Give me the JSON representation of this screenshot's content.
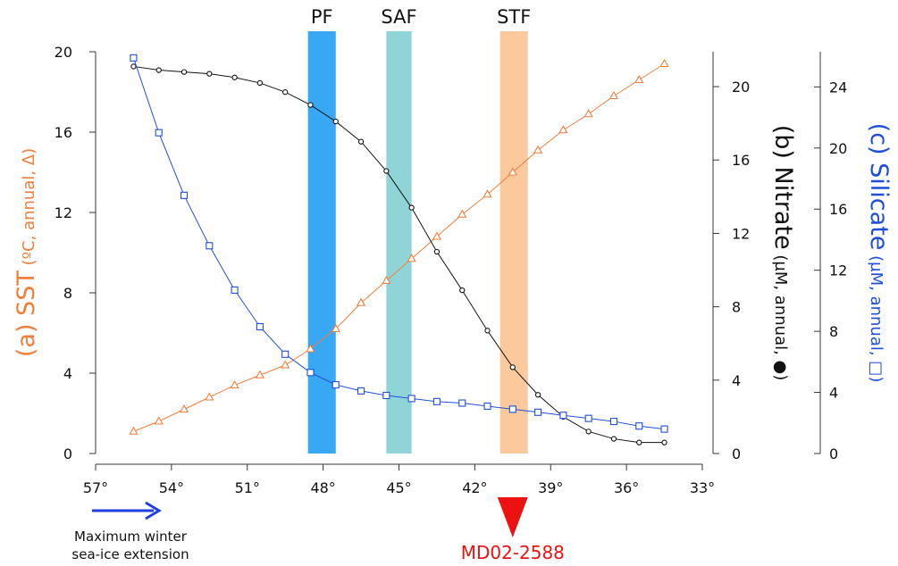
{
  "chart_data": {
    "type": "line",
    "x_label_unit": "°",
    "x_ticks": [
      57,
      54,
      51,
      48,
      45,
      42,
      39,
      36,
      33
    ],
    "xlim": [
      57,
      33
    ],
    "axes": {
      "sst": {
        "ticks": [
          0,
          4,
          8,
          12,
          16,
          20
        ],
        "ylim": [
          0,
          20
        ],
        "title_main": "(a) SST",
        "title_sub": " (ºC, annual, Δ)",
        "color": "#f07f3c"
      },
      "nitrate": {
        "ticks": [
          0,
          4,
          8,
          12,
          16,
          20
        ],
        "ylim": [
          0,
          21.9
        ],
        "title_main": "(b) Nitrate",
        "title_sub": " (µM, annual, ●)",
        "color": "#111111"
      },
      "silicate": {
        "ticks": [
          0,
          4,
          8,
          12,
          16,
          20,
          24
        ],
        "ylim": [
          0,
          26.3
        ],
        "title_main": "(c) Silicate",
        "title_sub": " (µM, annual, □)",
        "color": "#1f4fd6"
      }
    },
    "fronts": [
      {
        "label": "PF",
        "x_from": 48.6,
        "x_to": 47.5,
        "color": "#38a8f5"
      },
      {
        "label": "SAF",
        "x_from": 45.5,
        "x_to": 44.5,
        "color": "#8fd5d8"
      },
      {
        "label": "STF",
        "x_from": 41.0,
        "x_to": 39.9,
        "color": "#fbc99c"
      }
    ],
    "series": [
      {
        "axis": "sst",
        "marker": "triangle",
        "color": "#f07f3c",
        "x": [
          55.5,
          54.5,
          53.5,
          52.5,
          51.5,
          50.5,
          49.5,
          48.5,
          47.5,
          46.5,
          45.5,
          44.5,
          43.5,
          42.5,
          41.5,
          40.5,
          39.5,
          38.5,
          37.5,
          36.5,
          35.5,
          34.5
        ],
        "y": [
          1.1,
          1.6,
          2.2,
          2.8,
          3.4,
          3.9,
          4.4,
          5.2,
          6.2,
          7.5,
          8.6,
          9.7,
          10.8,
          11.9,
          12.9,
          14.0,
          15.1,
          16.1,
          16.9,
          17.8,
          18.6,
          19.4
        ]
      },
      {
        "axis": "nitrate",
        "marker": "circle",
        "color": "#111111",
        "x": [
          55.5,
          54.5,
          53.5,
          52.5,
          51.5,
          50.5,
          49.5,
          48.5,
          47.5,
          46.5,
          45.5,
          44.5,
          43.5,
          42.5,
          41.5,
          40.5,
          39.5,
          38.5,
          37.5,
          36.5,
          35.5,
          34.5
        ],
        "y": [
          21.1,
          20.9,
          20.8,
          20.7,
          20.5,
          20.2,
          19.7,
          19.0,
          18.1,
          17.0,
          15.4,
          13.4,
          11.0,
          8.9,
          6.7,
          4.7,
          3.2,
          2.0,
          1.2,
          0.8,
          0.6,
          0.6
        ]
      },
      {
        "axis": "silicate",
        "marker": "square",
        "color": "#1f4fd6",
        "x": [
          55.5,
          54.5,
          53.5,
          52.5,
          51.5,
          50.5,
          49.5,
          48.5,
          47.5,
          46.5,
          45.5,
          44.5,
          43.5,
          42.5,
          41.5,
          40.5,
          39.5,
          38.5,
          37.5,
          36.5,
          35.5,
          34.5
        ],
        "y": [
          25.9,
          21.0,
          16.9,
          13.6,
          10.7,
          8.3,
          6.5,
          5.3,
          4.5,
          4.1,
          3.8,
          3.6,
          3.4,
          3.3,
          3.1,
          2.9,
          2.7,
          2.5,
          2.3,
          2.1,
          1.8,
          1.6
        ]
      }
    ],
    "annotations": {
      "sea_ice_line1": "Maximum winter",
      "sea_ice_line2": "sea-ice extension",
      "sea_ice_arrow_color": "#1f3fe0",
      "core_label": "MD02-2588",
      "core_x": 40.5,
      "core_color": "#ee1111"
    }
  }
}
